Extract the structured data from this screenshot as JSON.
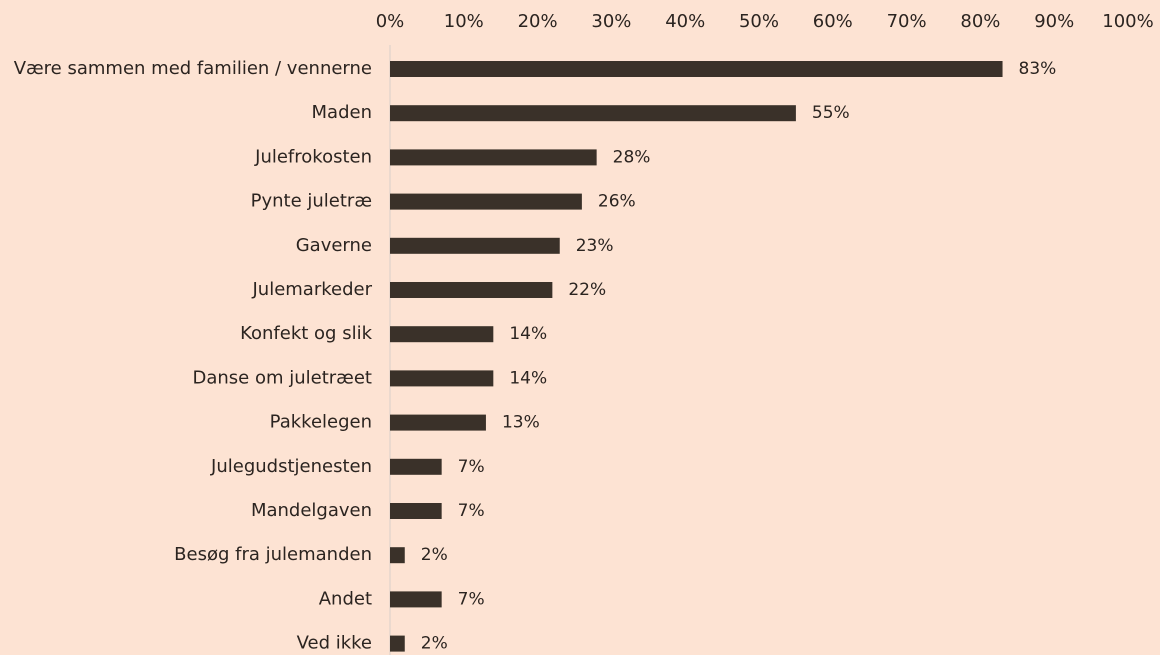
{
  "chart_data": {
    "type": "bar",
    "orientation": "horizontal",
    "color": "#3a3129",
    "grid": false,
    "categories": [
      "Være sammen med familien / vennerne",
      "Maden",
      "Julefrokosten",
      "Pynte juletræ",
      "Gaverne",
      "Julemarkeder",
      "Konfekt og slik",
      "Danse om juletræet",
      "Pakkelegen",
      "Julegudstjenesten",
      "Mandelgaven",
      "Besøg fra julemanden",
      "Andet",
      "Ved ikke"
    ],
    "values": [
      83,
      55,
      28,
      26,
      23,
      22,
      14,
      14,
      13,
      7,
      7,
      2,
      7,
      2
    ],
    "value_labels": [
      "83%",
      "55%",
      "28%",
      "26%",
      "23%",
      "22%",
      "14%",
      "14%",
      "13%",
      "7%",
      "7%",
      "2%",
      "7%",
      "2%"
    ],
    "xlim": [
      0,
      100
    ],
    "xticks": [
      {
        "value": 0,
        "label": "0%"
      },
      {
        "value": 10,
        "label": "10%"
      },
      {
        "value": 20,
        "label": "20%"
      },
      {
        "value": 30,
        "label": "30%"
      },
      {
        "value": 40,
        "label": "40%"
      },
      {
        "value": 50,
        "label": "50%"
      },
      {
        "value": 60,
        "label": "60%"
      },
      {
        "value": 70,
        "label": "70%"
      },
      {
        "value": 80,
        "label": "80%"
      },
      {
        "value": 90,
        "label": "90%"
      },
      {
        "value": 100,
        "label": "100%"
      }
    ]
  }
}
